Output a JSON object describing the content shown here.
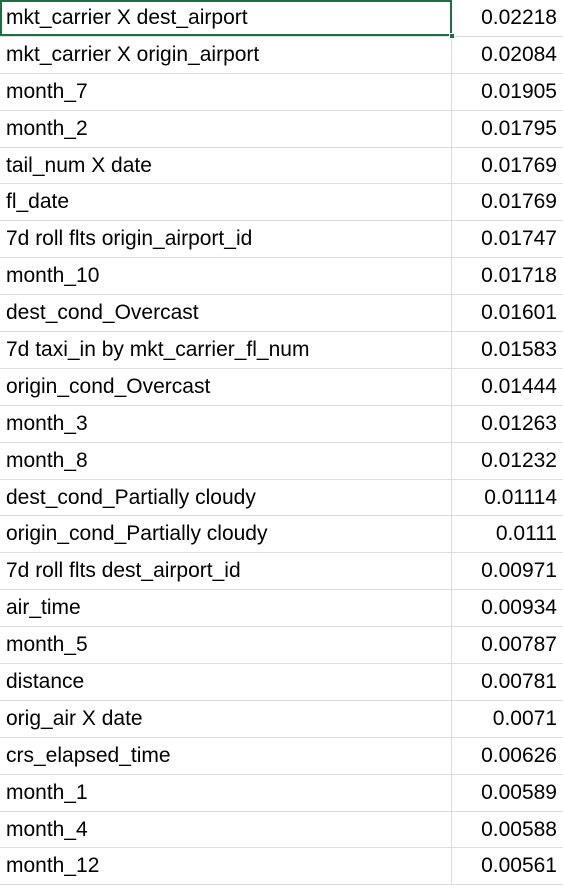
{
  "sheet": {
    "selected_row_index": 0,
    "rows": [
      {
        "feature": "mkt_carrier X dest_airport",
        "importance": "0.02218"
      },
      {
        "feature": "mkt_carrier X origin_airport",
        "importance": "0.02084"
      },
      {
        "feature": "month_7",
        "importance": "0.01905"
      },
      {
        "feature": "month_2",
        "importance": "0.01795"
      },
      {
        "feature": "tail_num X date",
        "importance": "0.01769"
      },
      {
        "feature": "fl_date",
        "importance": "0.01769"
      },
      {
        "feature": "7d roll flts origin_airport_id",
        "importance": "0.01747"
      },
      {
        "feature": "month_10",
        "importance": "0.01718"
      },
      {
        "feature": "dest_cond_Overcast",
        "importance": "0.01601"
      },
      {
        "feature": "7d taxi_in by mkt_carrier_fl_num",
        "importance": "0.01583"
      },
      {
        "feature": "origin_cond_Overcast",
        "importance": "0.01444"
      },
      {
        "feature": "month_3",
        "importance": "0.01263"
      },
      {
        "feature": "month_8",
        "importance": "0.01232"
      },
      {
        "feature": "dest_cond_Partially cloudy",
        "importance": "0.01114"
      },
      {
        "feature": "origin_cond_Partially cloudy",
        "importance": "0.0111"
      },
      {
        "feature": "7d roll flts dest_airport_id",
        "importance": "0.00971"
      },
      {
        "feature": "air_time",
        "importance": "0.00934"
      },
      {
        "feature": "month_5",
        "importance": "0.00787"
      },
      {
        "feature": "distance",
        "importance": "0.00781"
      },
      {
        "feature": "orig_air X date",
        "importance": "0.0071"
      },
      {
        "feature": "crs_elapsed_time",
        "importance": "0.00626"
      },
      {
        "feature": "month_1",
        "importance": "0.00589"
      },
      {
        "feature": "month_4",
        "importance": "0.00588"
      },
      {
        "feature": "month_12",
        "importance": "0.00561"
      }
    ]
  }
}
